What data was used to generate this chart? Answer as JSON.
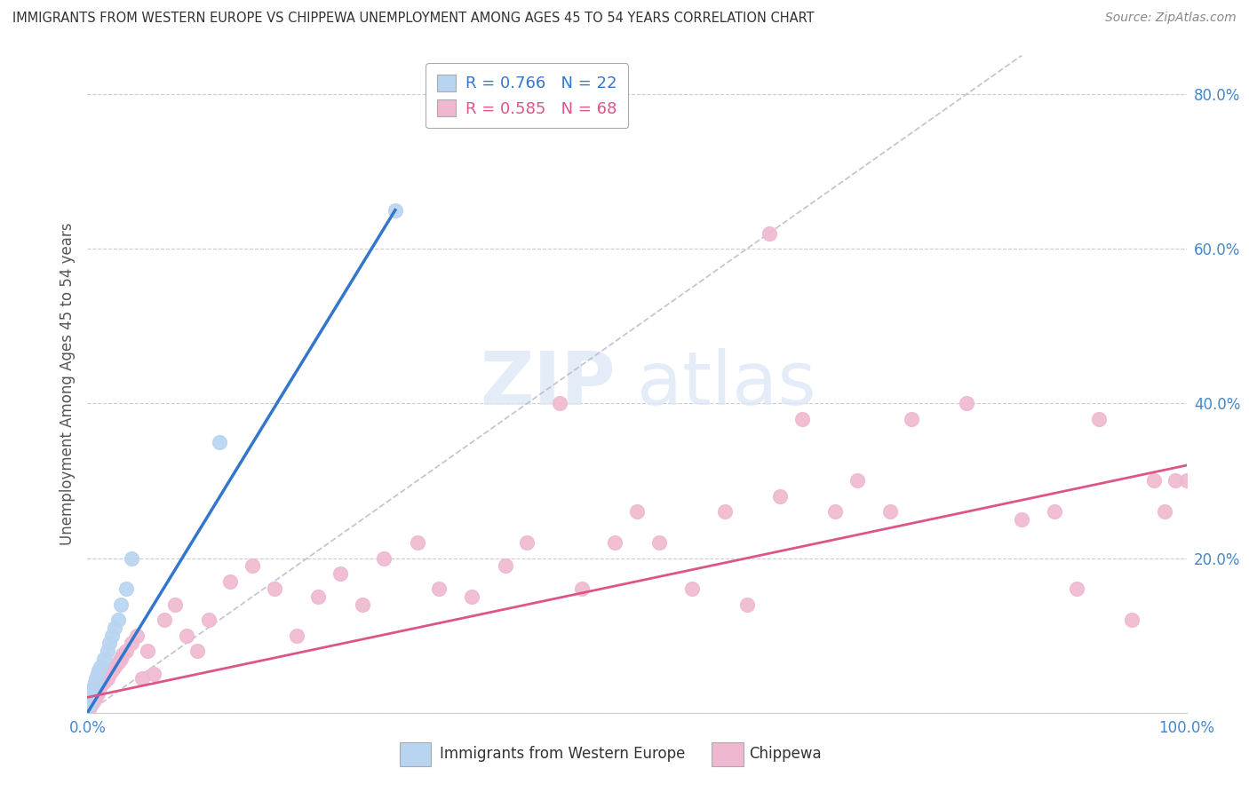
{
  "title": "IMMIGRANTS FROM WESTERN EUROPE VS CHIPPEWA UNEMPLOYMENT AMONG AGES 45 TO 54 YEARS CORRELATION CHART",
  "source": "Source: ZipAtlas.com",
  "ylabel": "Unemployment Among Ages 45 to 54 years",
  "xlim": [
    0.0,
    1.0
  ],
  "ylim": [
    0.0,
    0.85
  ],
  "xtick_positions": [
    0.0,
    1.0
  ],
  "xticklabels": [
    "0.0%",
    "100.0%"
  ],
  "ytick_positions": [
    0.2,
    0.4,
    0.6,
    0.8
  ],
  "yticklabels": [
    "20.0%",
    "40.0%",
    "60.0%",
    "80.0%"
  ],
  "blue_R": "0.766",
  "blue_N": "22",
  "pink_R": "0.585",
  "pink_N": "68",
  "blue_color": "#b8d4f0",
  "pink_color": "#f0b8d0",
  "blue_line_color": "#3377cc",
  "pink_line_color": "#dd5588",
  "diagonal_color": "#bbbbcc",
  "watermark_zip": "ZIP",
  "watermark_atlas": "atlas",
  "blue_points_x": [
    0.001,
    0.002,
    0.003,
    0.004,
    0.005,
    0.006,
    0.007,
    0.008,
    0.009,
    0.01,
    0.012,
    0.015,
    0.018,
    0.02,
    0.022,
    0.025,
    0.028,
    0.03,
    0.035,
    0.04,
    0.12,
    0.28
  ],
  "blue_points_y": [
    0.01,
    0.015,
    0.02,
    0.025,
    0.03,
    0.035,
    0.04,
    0.045,
    0.05,
    0.055,
    0.06,
    0.07,
    0.08,
    0.09,
    0.1,
    0.11,
    0.12,
    0.14,
    0.16,
    0.2,
    0.35,
    0.65
  ],
  "pink_points_x": [
    0.001,
    0.002,
    0.003,
    0.004,
    0.005,
    0.006,
    0.007,
    0.008,
    0.009,
    0.01,
    0.012,
    0.015,
    0.018,
    0.02,
    0.022,
    0.025,
    0.028,
    0.03,
    0.032,
    0.035,
    0.04,
    0.045,
    0.05,
    0.055,
    0.06,
    0.07,
    0.08,
    0.09,
    0.1,
    0.11,
    0.13,
    0.15,
    0.17,
    0.19,
    0.21,
    0.23,
    0.25,
    0.27,
    0.3,
    0.32,
    0.35,
    0.38,
    0.4,
    0.43,
    0.45,
    0.48,
    0.5,
    0.52,
    0.55,
    0.58,
    0.6,
    0.63,
    0.65,
    0.68,
    0.7,
    0.73,
    0.75,
    0.8,
    0.85,
    0.88,
    0.9,
    0.92,
    0.95,
    0.97,
    0.98,
    0.99,
    1.0,
    0.62
  ],
  "pink_points_y": [
    0.005,
    0.008,
    0.01,
    0.012,
    0.015,
    0.018,
    0.02,
    0.022,
    0.025,
    0.03,
    0.035,
    0.04,
    0.045,
    0.05,
    0.055,
    0.06,
    0.065,
    0.07,
    0.075,
    0.08,
    0.09,
    0.1,
    0.045,
    0.08,
    0.05,
    0.12,
    0.14,
    0.1,
    0.08,
    0.12,
    0.17,
    0.19,
    0.16,
    0.1,
    0.15,
    0.18,
    0.14,
    0.2,
    0.22,
    0.16,
    0.15,
    0.19,
    0.22,
    0.4,
    0.16,
    0.22,
    0.26,
    0.22,
    0.16,
    0.26,
    0.14,
    0.28,
    0.38,
    0.26,
    0.3,
    0.26,
    0.38,
    0.4,
    0.25,
    0.26,
    0.16,
    0.38,
    0.12,
    0.3,
    0.26,
    0.3,
    0.3,
    0.62
  ],
  "blue_line_x": [
    0.0,
    0.28
  ],
  "blue_line_y": [
    0.0,
    0.65
  ],
  "pink_line_x": [
    0.0,
    1.0
  ],
  "pink_line_y": [
    0.02,
    0.32
  ],
  "diag_line_x": [
    0.0,
    0.85
  ],
  "diag_line_y": [
    0.0,
    0.85
  ],
  "legend_label_blue": "Immigrants from Western Europe",
  "legend_label_pink": "Chippewa"
}
